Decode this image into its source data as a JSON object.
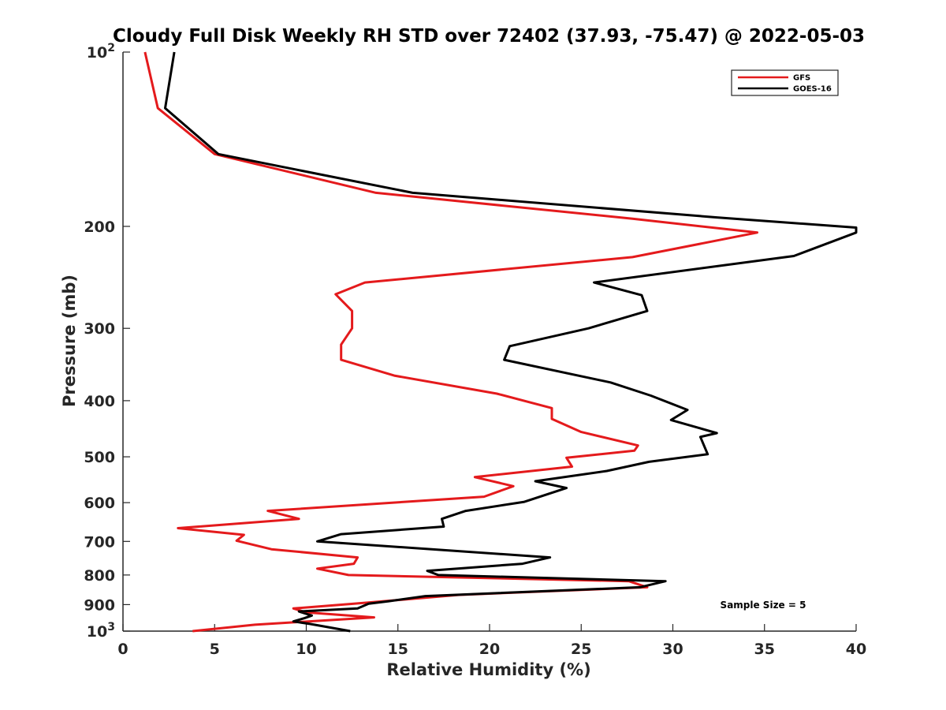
{
  "chart_data": {
    "type": "line",
    "title": "Cloudy Full Disk Weekly RH STD over 72402 (37.93, -75.47) @ 2022-05-03",
    "xlabel": "Relative Humidity (%)",
    "ylabel": "Pressure (mb)",
    "xlim": [
      0,
      40
    ],
    "ylim": [
      100,
      1000
    ],
    "yscale": "log",
    "y_reversed": true,
    "xticks": [
      0,
      5,
      10,
      15,
      20,
      25,
      30,
      35,
      40
    ],
    "yticks": [
      {
        "value": 100,
        "base": "10",
        "exp": "2"
      },
      {
        "value": 200,
        "label": "200"
      },
      {
        "value": 300,
        "label": "300"
      },
      {
        "value": 400,
        "label": "400"
      },
      {
        "value": 500,
        "label": "500"
      },
      {
        "value": 600,
        "label": "600"
      },
      {
        "value": 700,
        "label": "700"
      },
      {
        "value": 800,
        "label": "800"
      },
      {
        "value": 900,
        "label": "900"
      },
      {
        "value": 1000,
        "base": "10",
        "exp": "3"
      }
    ],
    "grid": false,
    "legend_position": "top-right",
    "annotation": "Sample Size = 5",
    "series": [
      {
        "name": "GFS",
        "color": "#e41a1c",
        "points": [
          [
            1.2,
            100
          ],
          [
            1.9,
            125
          ],
          [
            5.0,
            150
          ],
          [
            13.8,
            175
          ],
          [
            27.8,
            194
          ],
          [
            34.6,
            205
          ],
          [
            27.8,
            226
          ],
          [
            13.2,
            250
          ],
          [
            11.6,
            262
          ],
          [
            12.5,
            280
          ],
          [
            12.5,
            300
          ],
          [
            11.9,
            320
          ],
          [
            11.9,
            340
          ],
          [
            14.8,
            362
          ],
          [
            20.4,
            389
          ],
          [
            23.4,
            412
          ],
          [
            23.4,
            430
          ],
          [
            25.0,
            453
          ],
          [
            28.1,
            478
          ],
          [
            27.9,
            488
          ],
          [
            24.2,
            502
          ],
          [
            24.5,
            520
          ],
          [
            19.2,
            542
          ],
          [
            21.3,
            562
          ],
          [
            19.7,
            586
          ],
          [
            7.9,
            620
          ],
          [
            9.6,
            640
          ],
          [
            3.0,
            664
          ],
          [
            6.6,
            682
          ],
          [
            6.2,
            698
          ],
          [
            8.1,
            722
          ],
          [
            12.8,
            746
          ],
          [
            12.6,
            765
          ],
          [
            10.6,
            780
          ],
          [
            12.3,
            800
          ],
          [
            27.6,
            820
          ],
          [
            28.6,
            840
          ],
          [
            18.3,
            866
          ],
          [
            12.6,
            897
          ],
          [
            9.3,
            914
          ],
          [
            10.0,
            928
          ],
          [
            13.7,
            947
          ],
          [
            7.2,
            975
          ],
          [
            3.8,
            1000
          ]
        ]
      },
      {
        "name": "GOES-16",
        "color": "#000000",
        "points": [
          [
            2.8,
            100
          ],
          [
            2.3,
            125
          ],
          [
            5.2,
            150
          ],
          [
            15.8,
            175
          ],
          [
            32.4,
            193
          ],
          [
            40.0,
            201
          ],
          [
            40.0,
            205
          ],
          [
            36.6,
            225
          ],
          [
            25.7,
            250
          ],
          [
            28.3,
            263
          ],
          [
            28.6,
            280
          ],
          [
            25.4,
            300
          ],
          [
            21.1,
            322
          ],
          [
            20.8,
            340
          ],
          [
            26.6,
            372
          ],
          [
            28.8,
            392
          ],
          [
            30.8,
            415
          ],
          [
            29.9,
            432
          ],
          [
            32.4,
            455
          ],
          [
            31.5,
            462
          ],
          [
            31.9,
            495
          ],
          [
            28.7,
            510
          ],
          [
            26.4,
            529
          ],
          [
            22.5,
            551
          ],
          [
            24.2,
            566
          ],
          [
            21.9,
            598
          ],
          [
            18.7,
            620
          ],
          [
            17.4,
            640
          ],
          [
            17.5,
            660
          ],
          [
            11.9,
            680
          ],
          [
            10.6,
            700
          ],
          [
            23.3,
            746
          ],
          [
            21.8,
            765
          ],
          [
            16.6,
            787
          ],
          [
            17.2,
            800
          ],
          [
            29.6,
            820
          ],
          [
            28.2,
            840
          ],
          [
            16.5,
            870
          ],
          [
            14.5,
            888
          ],
          [
            13.4,
            897
          ],
          [
            12.8,
            914
          ],
          [
            9.6,
            925
          ],
          [
            10.3,
            940
          ],
          [
            9.9,
            950
          ],
          [
            9.3,
            962
          ],
          [
            10.2,
            972
          ],
          [
            12.4,
            1000
          ]
        ]
      }
    ]
  }
}
